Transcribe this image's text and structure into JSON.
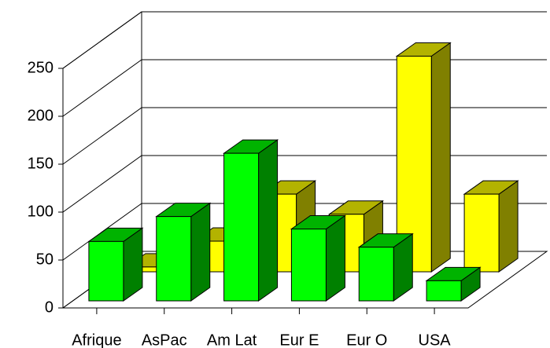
{
  "chart_data": {
    "type": "bar3d",
    "categories": [
      "Afrique",
      "AsPac",
      "Am Lat",
      "Eur E",
      "Eur O",
      "USA"
    ],
    "series": [
      {
        "color": "#ffff00",
        "values": [
          5,
          32,
          81,
          60,
          225,
          81
        ]
      },
      {
        "color": "#00ff00",
        "values": [
          62,
          88,
          154,
          75,
          56,
          21
        ]
      }
    ],
    "ylim": [
      0,
      250
    ],
    "yticks": [
      0,
      50,
      100,
      150,
      200,
      250
    ],
    "grid": true
  }
}
